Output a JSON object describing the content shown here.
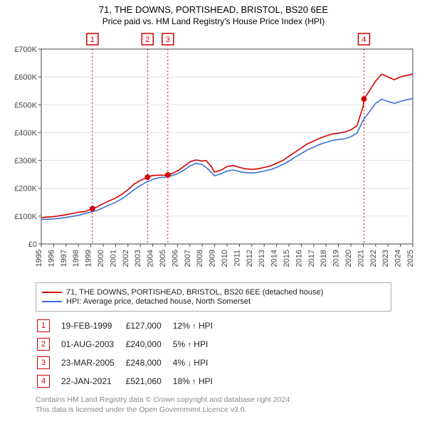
{
  "title_line1": "71, THE DOWNS, PORTISHEAD, BRISTOL, BS20 6EE",
  "title_line2": "Price paid vs. HM Land Registry's House Price Index (HPI)",
  "chart": {
    "type": "line",
    "bg": "#ffffff",
    "grid_color": "#e2e2e2",
    "axis_color": "#444444",
    "axis_fontsize": 11,
    "x": {
      "min": 1995,
      "max": 2025,
      "ticks": [
        1995,
        1996,
        1997,
        1998,
        1999,
        2000,
        2001,
        2002,
        2003,
        2004,
        2005,
        2006,
        2007,
        2008,
        2009,
        2010,
        2011,
        2012,
        2013,
        2014,
        2015,
        2016,
        2017,
        2018,
        2019,
        2020,
        2021,
        2022,
        2023,
        2024,
        2025
      ]
    },
    "y": {
      "min": 0,
      "max": 700000,
      "ticks": [
        0,
        100000,
        200000,
        300000,
        400000,
        500000,
        600000,
        700000
      ],
      "tick_labels": [
        "£0",
        "£100K",
        "£200K",
        "£300K",
        "£400K",
        "£500K",
        "£600K",
        "£700K"
      ]
    },
    "series": [
      {
        "name": "71, THE DOWNS, PORTISHEAD, BRISTOL, BS20 6EE (detached house)",
        "color": "#d10000",
        "width": 1.6,
        "points": [
          [
            1995.0,
            95000
          ],
          [
            1996.0,
            98000
          ],
          [
            1997.0,
            105000
          ],
          [
            1998.0,
            114000
          ],
          [
            1998.5,
            116000
          ],
          [
            1999.13,
            127000
          ],
          [
            1999.5,
            133000
          ],
          [
            2000.0,
            145000
          ],
          [
            2000.5,
            155000
          ],
          [
            2001.0,
            165000
          ],
          [
            2001.5,
            178000
          ],
          [
            2002.0,
            195000
          ],
          [
            2002.5,
            215000
          ],
          [
            2003.0,
            228000
          ],
          [
            2003.58,
            240000
          ],
          [
            2004.0,
            246000
          ],
          [
            2004.5,
            247000
          ],
          [
            2005.0,
            247000
          ],
          [
            2005.22,
            248000
          ],
          [
            2005.5,
            252000
          ],
          [
            2006.0,
            262000
          ],
          [
            2006.5,
            278000
          ],
          [
            2007.0,
            295000
          ],
          [
            2007.5,
            302000
          ],
          [
            2008.0,
            298000
          ],
          [
            2008.3,
            300000
          ],
          [
            2008.7,
            280000
          ],
          [
            2009.0,
            258000
          ],
          [
            2009.5,
            265000
          ],
          [
            2010.0,
            278000
          ],
          [
            2010.5,
            282000
          ],
          [
            2011.0,
            275000
          ],
          [
            2011.5,
            270000
          ],
          [
            2012.0,
            268000
          ],
          [
            2012.5,
            270000
          ],
          [
            2013.0,
            275000
          ],
          [
            2013.5,
            280000
          ],
          [
            2014.0,
            290000
          ],
          [
            2014.5,
            300000
          ],
          [
            2015.0,
            315000
          ],
          [
            2015.5,
            330000
          ],
          [
            2016.0,
            345000
          ],
          [
            2016.5,
            360000
          ],
          [
            2017.0,
            370000
          ],
          [
            2017.5,
            380000
          ],
          [
            2018.0,
            388000
          ],
          [
            2018.5,
            395000
          ],
          [
            2019.0,
            398000
          ],
          [
            2019.5,
            402000
          ],
          [
            2020.0,
            410000
          ],
          [
            2020.5,
            425000
          ],
          [
            2021.0,
            495000
          ],
          [
            2021.06,
            521060
          ],
          [
            2021.5,
            550000
          ],
          [
            2022.0,
            585000
          ],
          [
            2022.5,
            610000
          ],
          [
            2023.0,
            600000
          ],
          [
            2023.5,
            590000
          ],
          [
            2024.0,
            600000
          ],
          [
            2024.5,
            605000
          ],
          [
            2025.0,
            610000
          ]
        ]
      },
      {
        "name": "HPI: Average price, detached house, North Somerset",
        "color": "#3a6fd8",
        "width": 1.4,
        "points": [
          [
            1995.0,
            88000
          ],
          [
            1996.0,
            90000
          ],
          [
            1997.0,
            95000
          ],
          [
            1998.0,
            103000
          ],
          [
            1999.0,
            115000
          ],
          [
            1999.5,
            120000
          ],
          [
            2000.0,
            130000
          ],
          [
            2000.5,
            140000
          ],
          [
            2001.0,
            150000
          ],
          [
            2001.5,
            162000
          ],
          [
            2002.0,
            178000
          ],
          [
            2002.5,
            195000
          ],
          [
            2003.0,
            210000
          ],
          [
            2003.5,
            222000
          ],
          [
            2004.0,
            232000
          ],
          [
            2004.5,
            238000
          ],
          [
            2005.0,
            240000
          ],
          [
            2005.5,
            245000
          ],
          [
            2006.0,
            252000
          ],
          [
            2006.5,
            265000
          ],
          [
            2007.0,
            280000
          ],
          [
            2007.5,
            290000
          ],
          [
            2008.0,
            285000
          ],
          [
            2008.5,
            268000
          ],
          [
            2009.0,
            245000
          ],
          [
            2009.5,
            252000
          ],
          [
            2010.0,
            262000
          ],
          [
            2010.5,
            266000
          ],
          [
            2011.0,
            260000
          ],
          [
            2011.5,
            256000
          ],
          [
            2012.0,
            255000
          ],
          [
            2012.5,
            257000
          ],
          [
            2013.0,
            262000
          ],
          [
            2013.5,
            267000
          ],
          [
            2014.0,
            275000
          ],
          [
            2014.5,
            285000
          ],
          [
            2015.0,
            298000
          ],
          [
            2015.5,
            312000
          ],
          [
            2016.0,
            325000
          ],
          [
            2016.5,
            338000
          ],
          [
            2017.0,
            348000
          ],
          [
            2017.5,
            358000
          ],
          [
            2018.0,
            365000
          ],
          [
            2018.5,
            372000
          ],
          [
            2019.0,
            375000
          ],
          [
            2019.5,
            378000
          ],
          [
            2020.0,
            385000
          ],
          [
            2020.5,
            398000
          ],
          [
            2021.0,
            445000
          ],
          [
            2021.5,
            475000
          ],
          [
            2022.0,
            505000
          ],
          [
            2022.5,
            520000
          ],
          [
            2023.0,
            512000
          ],
          [
            2023.5,
            505000
          ],
          [
            2024.0,
            512000
          ],
          [
            2024.5,
            518000
          ],
          [
            2025.0,
            522000
          ]
        ]
      }
    ],
    "vlines": [
      {
        "x": 1999.13,
        "color": "#d10000"
      },
      {
        "x": 2003.58,
        "color": "#d10000"
      },
      {
        "x": 2005.22,
        "color": "#d10000"
      },
      {
        "x": 2021.06,
        "color": "#d10000"
      }
    ],
    "top_markers": [
      {
        "n": "1",
        "x": 1999.13,
        "color": "#d10000"
      },
      {
        "n": "2",
        "x": 2003.58,
        "color": "#d10000"
      },
      {
        "n": "3",
        "x": 2005.22,
        "color": "#d10000"
      },
      {
        "n": "4",
        "x": 2021.06,
        "color": "#d10000"
      }
    ],
    "point_markers": [
      {
        "x": 1999.13,
        "y": 127000,
        "color": "#d10000"
      },
      {
        "x": 2003.58,
        "y": 240000,
        "color": "#d10000"
      },
      {
        "x": 2005.22,
        "y": 248000,
        "color": "#d10000"
      },
      {
        "x": 2021.06,
        "y": 521060,
        "color": "#d10000"
      }
    ]
  },
  "legend": {
    "rows": [
      {
        "color": "#d10000",
        "label": "71, THE DOWNS, PORTISHEAD, BRISTOL, BS20 6EE (detached house)"
      },
      {
        "color": "#3a6fd8",
        "label": "HPI: Average price, detached house, North Somerset"
      }
    ]
  },
  "events": [
    {
      "n": "1",
      "color": "#d10000",
      "date": "19-FEB-1999",
      "price": "£127,000",
      "pct": "12%",
      "arrow": "↑",
      "tag": "HPI"
    },
    {
      "n": "2",
      "color": "#d10000",
      "date": "01-AUG-2003",
      "price": "£240,000",
      "pct": "5%",
      "arrow": "↑",
      "tag": "HPI"
    },
    {
      "n": "3",
      "color": "#d10000",
      "date": "23-MAR-2005",
      "price": "£248,000",
      "pct": "4%",
      "arrow": "↓",
      "tag": "HPI"
    },
    {
      "n": "4",
      "color": "#d10000",
      "date": "22-JAN-2021",
      "price": "£521,060",
      "pct": "18%",
      "arrow": "↑",
      "tag": "HPI"
    }
  ],
  "footnote_line1": "Contains HM Land Registry data © Crown copyright and database right 2024.",
  "footnote_line2": "This data is licensed under the Open Government Licence v3.0."
}
